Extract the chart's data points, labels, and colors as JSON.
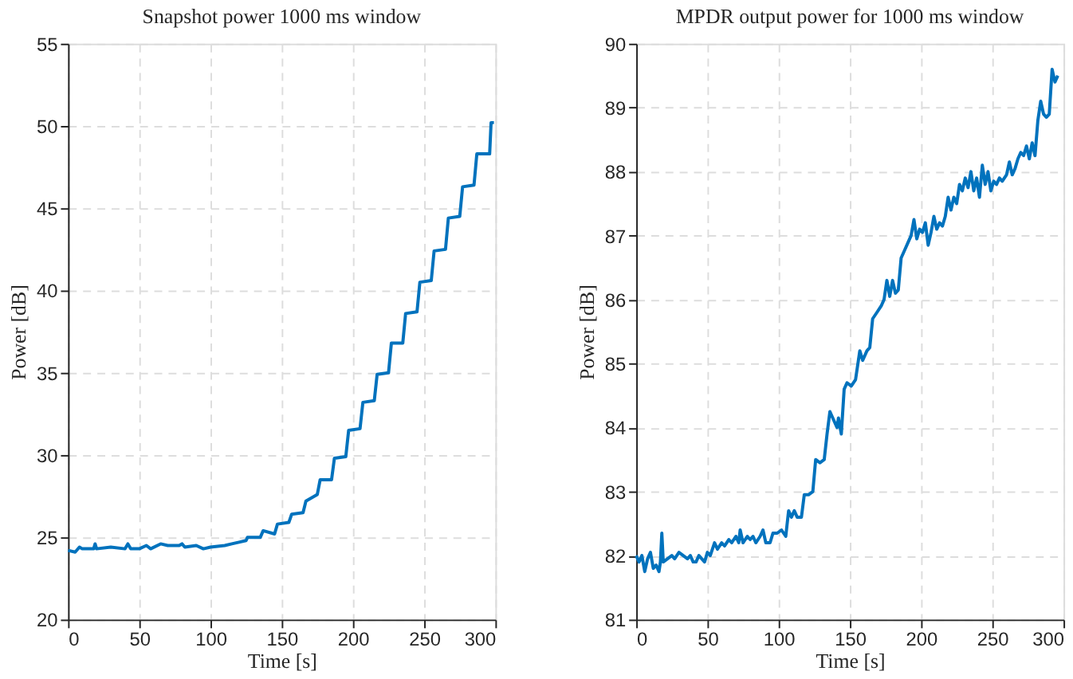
{
  "chart_data": [
    {
      "type": "line",
      "title": "Snapshot power 1000 ms window",
      "xlabel": "Time [s]",
      "ylabel": "Power [dB]",
      "xlim": [
        0,
        300
      ],
      "xticks": [
        0,
        50,
        100,
        150,
        200,
        250,
        300
      ],
      "ylim": [
        20,
        55
      ],
      "yticks": [
        20,
        25,
        30,
        35,
        40,
        45,
        50,
        55
      ],
      "grid": true,
      "marker": "none",
      "line_style": "solid",
      "series": [
        {
          "color": "#0072bd",
          "x": [
            0,
            5,
            8,
            10,
            18,
            19,
            20,
            30,
            40,
            42,
            44,
            50,
            55,
            58,
            65,
            70,
            78,
            80,
            82,
            90,
            95,
            100,
            110,
            115,
            120,
            125,
            126,
            135,
            137,
            145,
            147,
            155,
            157,
            165,
            167,
            175,
            177,
            185,
            187,
            195,
            197,
            205,
            207,
            215,
            217,
            225,
            227,
            235,
            237,
            245,
            247,
            255,
            257,
            265,
            267,
            275,
            277,
            285,
            287,
            296,
            297,
            299
          ],
          "values": [
            24.2,
            24.1,
            24.4,
            24.3,
            24.3,
            24.6,
            24.3,
            24.4,
            24.3,
            24.6,
            24.3,
            24.3,
            24.5,
            24.3,
            24.6,
            24.5,
            24.5,
            24.6,
            24.4,
            24.5,
            24.3,
            24.4,
            24.5,
            24.6,
            24.7,
            24.8,
            25.0,
            25.0,
            25.4,
            25.2,
            25.8,
            25.9,
            26.4,
            26.5,
            27.2,
            27.6,
            28.5,
            28.5,
            29.8,
            29.9,
            31.5,
            31.6,
            33.2,
            33.3,
            34.9,
            35.0,
            36.8,
            36.8,
            38.6,
            38.7,
            40.5,
            40.6,
            42.4,
            42.5,
            44.4,
            44.5,
            46.3,
            46.4,
            48.3,
            48.3,
            50.2,
            50.2
          ]
        }
      ]
    },
    {
      "type": "line",
      "title": "MPDR output power for 1000 ms window",
      "xlabel": "Time [s]",
      "ylabel": "Power [dB]",
      "xlim": [
        0,
        300
      ],
      "xticks": [
        0,
        50,
        100,
        150,
        200,
        250,
        300
      ],
      "ylim": [
        81,
        90
      ],
      "yticks": [
        81,
        82,
        83,
        84,
        85,
        86,
        87,
        88,
        89,
        90
      ],
      "grid": true,
      "marker": "none",
      "line_style": "solid",
      "series": [
        {
          "color": "#0072bd",
          "x": [
            0,
            2,
            4,
            6,
            8,
            10,
            12,
            14,
            16,
            17,
            18,
            19,
            22,
            25,
            27,
            30,
            33,
            36,
            38,
            40,
            42,
            44,
            46,
            48,
            50,
            52,
            55,
            57,
            60,
            62,
            65,
            67,
            70,
            72,
            73,
            75,
            78,
            80,
            82,
            84,
            87,
            89,
            91,
            94,
            96,
            99,
            102,
            105,
            107,
            109,
            111,
            113,
            116,
            118,
            121,
            124,
            126,
            129,
            132,
            134,
            136,
            139,
            141,
            142,
            144,
            146,
            148,
            151,
            154,
            157,
            159,
            162,
            164,
            166,
            169,
            172,
            174,
            176,
            178,
            180,
            182,
            184,
            186,
            188,
            191,
            193,
            195,
            197,
            199,
            201,
            203,
            205,
            207,
            209,
            211,
            213,
            215,
            217,
            219,
            221,
            223,
            225,
            227,
            229,
            231,
            233,
            235,
            237,
            239,
            241,
            243,
            245,
            247,
            249,
            251,
            253,
            255,
            257,
            260,
            262,
            264,
            266,
            268,
            270,
            272,
            274,
            276,
            278,
            280,
            282,
            284,
            286,
            288,
            290,
            292,
            294,
            296
          ],
          "values": [
            82.0,
            81.9,
            82.0,
            81.75,
            81.95,
            82.05,
            81.8,
            81.85,
            81.75,
            81.9,
            82.35,
            81.9,
            81.95,
            82.0,
            81.95,
            82.05,
            82.0,
            81.95,
            82.0,
            81.9,
            81.9,
            82.0,
            81.95,
            81.9,
            82.05,
            82.0,
            82.2,
            82.1,
            82.2,
            82.15,
            82.25,
            82.2,
            82.3,
            82.2,
            82.4,
            82.2,
            82.3,
            82.25,
            82.3,
            82.2,
            82.3,
            82.4,
            82.2,
            82.2,
            82.35,
            82.35,
            82.4,
            82.3,
            82.7,
            82.6,
            82.7,
            82.6,
            82.6,
            82.95,
            82.95,
            83.0,
            83.5,
            83.45,
            83.5,
            83.9,
            84.25,
            84.1,
            84.0,
            84.15,
            83.9,
            84.6,
            84.7,
            84.65,
            84.75,
            85.2,
            85.05,
            85.2,
            85.25,
            85.7,
            85.8,
            85.9,
            86.0,
            86.3,
            86.05,
            86.3,
            86.1,
            86.15,
            86.65,
            86.75,
            86.9,
            87.0,
            87.25,
            86.95,
            87.1,
            87.05,
            87.2,
            86.85,
            87.05,
            87.3,
            87.1,
            87.2,
            87.15,
            87.3,
            87.6,
            87.4,
            87.6,
            87.5,
            87.8,
            87.7,
            87.9,
            87.75,
            88.0,
            87.7,
            87.9,
            87.6,
            88.1,
            87.8,
            88.0,
            87.7,
            87.85,
            87.8,
            87.9,
            87.85,
            87.95,
            88.15,
            87.95,
            88.05,
            88.2,
            88.3,
            88.25,
            88.4,
            88.2,
            88.45,
            88.25,
            88.8,
            89.1,
            88.9,
            88.85,
            88.9,
            89.6,
            89.4,
            89.5
          ]
        }
      ]
    }
  ]
}
